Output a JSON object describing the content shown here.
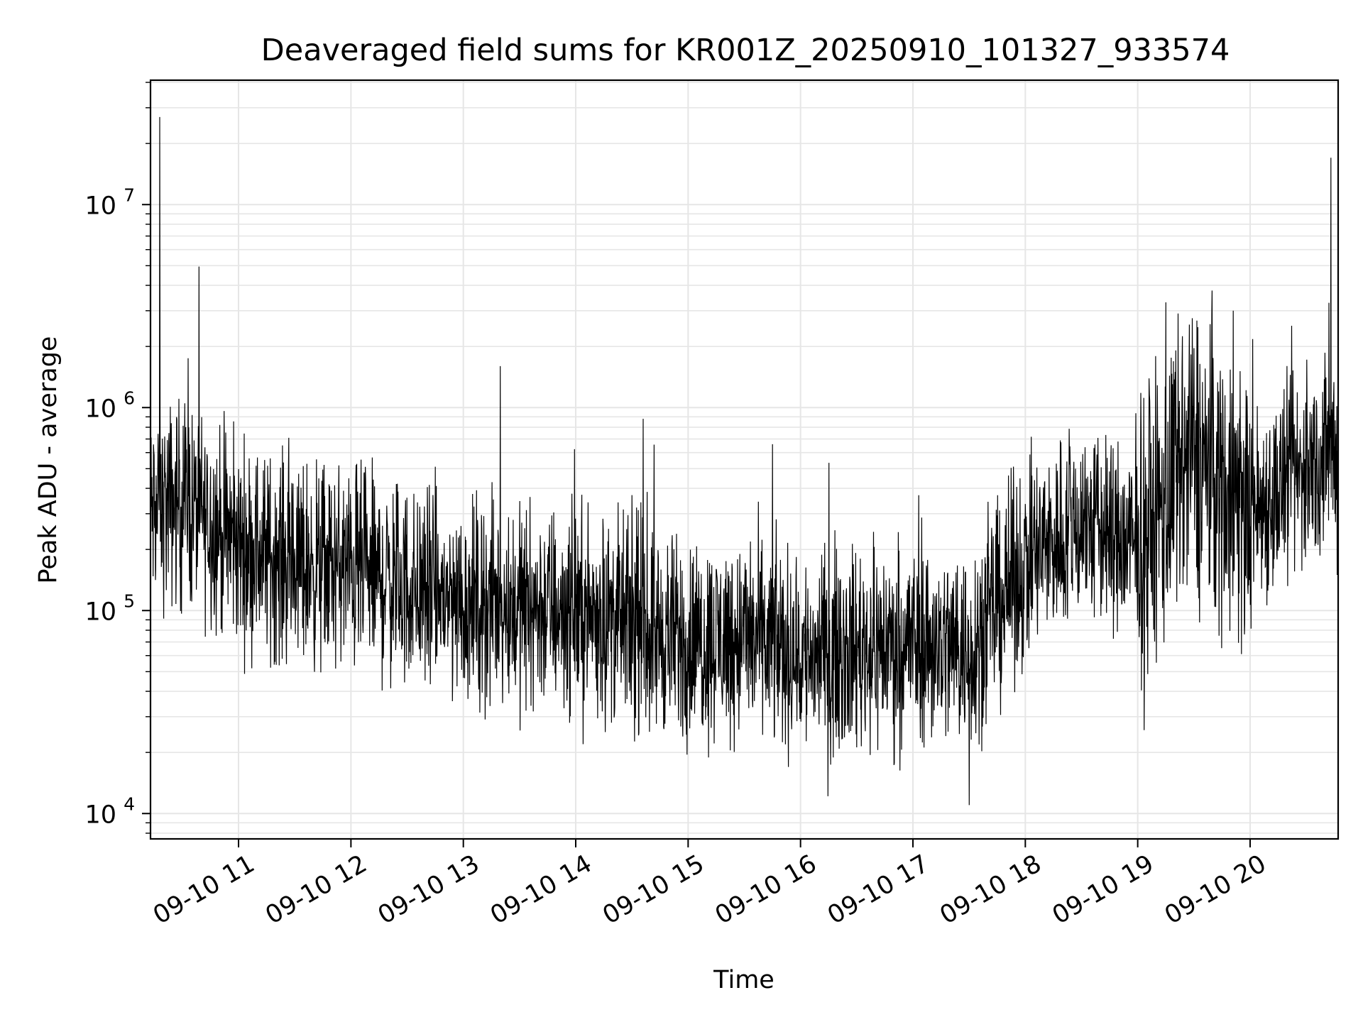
{
  "chart_data": {
    "type": "line",
    "title": "Deaveraged field sums for KR001Z_20250910_101327_933574",
    "xlabel": "Time",
    "ylabel": "Peak ADU - average",
    "x_range": [
      "09-10 10:13",
      "09-10 20:47"
    ],
    "y_scale": "log",
    "ylim": [
      7500,
      41000000
    ],
    "grid": true,
    "line_color": "#000000",
    "grid_color": "#e6e6e6",
    "x_ticks": [
      {
        "label": "09-10 11",
        "hour": 11
      },
      {
        "label": "09-10 12",
        "hour": 12
      },
      {
        "label": "09-10 13",
        "hour": 13
      },
      {
        "label": "09-10 14",
        "hour": 14
      },
      {
        "label": "09-10 15",
        "hour": 15
      },
      {
        "label": "09-10 16",
        "hour": 16
      },
      {
        "label": "09-10 17",
        "hour": 17
      },
      {
        "label": "09-10 18",
        "hour": 18
      },
      {
        "label": "09-10 19",
        "hour": 19
      },
      {
        "label": "09-10 20",
        "hour": 20
      }
    ],
    "y_ticks": [
      {
        "base": "10",
        "exp": "4",
        "value": 10000
      },
      {
        "base": "10",
        "exp": "5",
        "value": 100000
      },
      {
        "base": "10",
        "exp": "6",
        "value": 1000000
      },
      {
        "base": "10",
        "exp": "7",
        "value": 10000000
      }
    ],
    "series": [
      {
        "x_hours": [
          10.22,
          10.5,
          11.0,
          11.5,
          12.0,
          12.5,
          13.0,
          13.5,
          14.0,
          14.5,
          15.0,
          15.5,
          16.0,
          16.5,
          17.0,
          17.5,
          18.0,
          18.5,
          19.0,
          19.5,
          20.0,
          20.5,
          20.78
        ],
        "y_values": [
          300000,
          350000,
          210000,
          170000,
          160000,
          130000,
          110000,
          105000,
          100000,
          85000,
          70000,
          75000,
          60000,
          65000,
          70000,
          65000,
          170000,
          280000,
          200000,
          600000,
          300000,
          500000,
          600000
        ],
        "spikes": [
          {
            "x_hour": 10.3,
            "y": 27000000
          },
          {
            "x_hour": 10.55,
            "y": 1750000
          },
          {
            "x_hour": 13.33,
            "y": 1600000
          },
          {
            "x_hour": 14.6,
            "y": 880000
          },
          {
            "x_hour": 15.75,
            "y": 660000
          },
          {
            "x_hour": 19.25,
            "y": 3300000
          },
          {
            "x_hour": 19.85,
            "y": 3000000
          },
          {
            "x_hour": 20.72,
            "y": 17000000
          },
          {
            "x_hour": 17.5,
            "y_min": 11000
          }
        ]
      }
    ]
  }
}
